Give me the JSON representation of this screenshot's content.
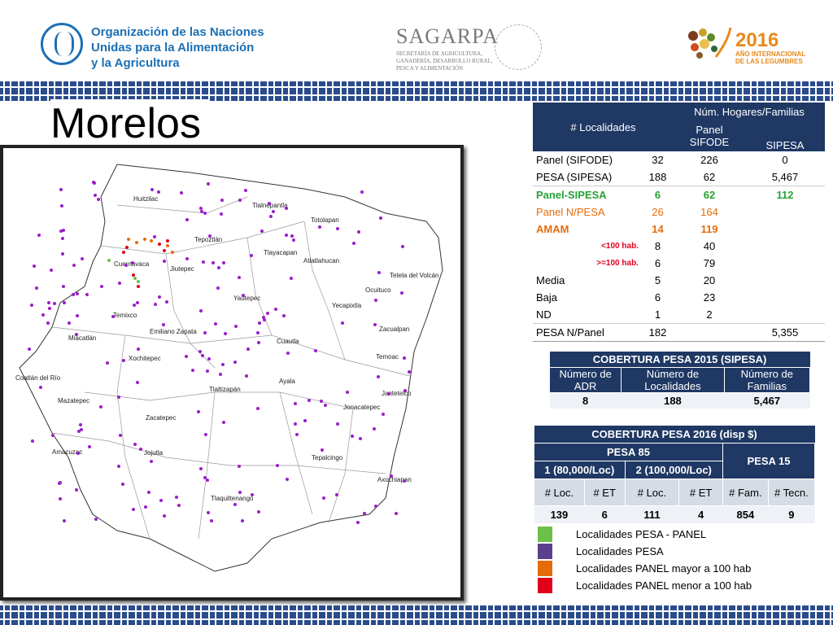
{
  "header": {
    "fao_lines": [
      "Organización de las Naciones",
      "Unidas para la Alimentación",
      "y la Agricultura"
    ],
    "fao_logo_text": "FAO",
    "sagarpa_name": "SAGARPA",
    "sagarpa_sub": [
      "SECRETARÍA DE AGRICULTURA,",
      "GANADERÍA, DESARROLLO RURAL,",
      "PESCA Y ALIMENTACIÓN"
    ],
    "legumes_year": "2016",
    "legumes_sub": [
      "AÑO INTERNACIONAL",
      "DE LAS LEGUMBRES"
    ]
  },
  "title": "Morelos",
  "map": {
    "municipalities": [
      "Huitzilac",
      "Tlalnepantla",
      "Totolapan",
      "Tepoztlán",
      "Tlayacapan",
      "Atlatlahucan",
      "Cuernavaca",
      "Tetela del Volcán",
      "Ocuituco",
      "Jiutepec",
      "Yautepec",
      "Yecapixtla",
      "Temixco",
      "Emiliano Zapata",
      "Cuautla",
      "Zacualpan",
      "Miacatlán",
      "Xochitepec",
      "Temoac",
      "Coatlán del Río",
      "Ayala",
      "Tlaltizapán",
      "Jantetelco",
      "Mazatepec",
      "Jonacatepec",
      "Zacatepec",
      "Amacuzac",
      "Jojutla",
      "Tepalcingo",
      "Axochiapan",
      "Tlaquiltenango"
    ]
  },
  "table1": {
    "header_localidades": "# Localidades",
    "header_hogares": "Núm. Hogares/Familias",
    "header_panel": "Panel SIFODE",
    "header_sipesa": "SIPESA",
    "rows": [
      {
        "label": "Panel (SIFODE)",
        "loc": "32",
        "panel": "226",
        "sipesa": "0"
      },
      {
        "label": "PESA (SIPESA)",
        "loc": "188",
        "panel": "62",
        "sipesa": "5,467"
      },
      {
        "label": "Panel-SIPESA",
        "loc": "6",
        "panel": "62",
        "sipesa": "112"
      },
      {
        "label": "Panel N/PESA",
        "loc": "26",
        "panel": "164",
        "sipesa": ""
      },
      {
        "label": "AMAM",
        "loc": "14",
        "panel": "119",
        "sipesa": ""
      },
      {
        "label": "<100 hab.",
        "loc": "8",
        "panel": "40",
        "sipesa": ""
      },
      {
        "label": ">=100 hab.",
        "loc": "6",
        "panel": "79",
        "sipesa": ""
      },
      {
        "label": "Media",
        "loc": "5",
        "panel": "20",
        "sipesa": ""
      },
      {
        "label": "Baja",
        "loc": "6",
        "panel": "23",
        "sipesa": ""
      },
      {
        "label": "ND",
        "loc": "1",
        "panel": "2",
        "sipesa": ""
      },
      {
        "label": "PESA N/Panel",
        "loc": "182",
        "panel": "",
        "sipesa": "5,355"
      }
    ]
  },
  "table2": {
    "title": "COBERTURA  PESA 2015 (SIPESA)",
    "cols": [
      "Número de ADR",
      "Número de Localidades",
      "Número de Familias"
    ],
    "values": [
      "8",
      "188",
      "5,467"
    ]
  },
  "table3": {
    "title": "COBERTURA PESA 2016 (disp $)",
    "pesa85": "PESA 85",
    "pesa15": "PESA 15",
    "sub1": "1 (80,000/Loc)",
    "sub2": "2 (100,000/Loc)",
    "cols": [
      "#  Loc.",
      "# ET",
      "# Loc.",
      "# ET",
      "# Fam.",
      "# Tecn."
    ],
    "values": [
      "139",
      "6",
      "111",
      "4",
      "854",
      "9"
    ]
  },
  "legend": [
    {
      "label": "Localidades PESA - PANEL",
      "color": "#6cc04a"
    },
    {
      "label": "Localidades PESA",
      "color": "#5b3f8c"
    },
    {
      "label": "Localidades PANEL mayor a 100 hab",
      "color": "#e46c0a"
    },
    {
      "label": "Localidades PANEL menor a 100 hab",
      "color": "#e0001a"
    }
  ],
  "colors": {
    "navy": "#1f3864",
    "green": "#27a236",
    "orange": "#e46c0a",
    "red": "#e0001a",
    "purple": "#9b1dc9"
  }
}
